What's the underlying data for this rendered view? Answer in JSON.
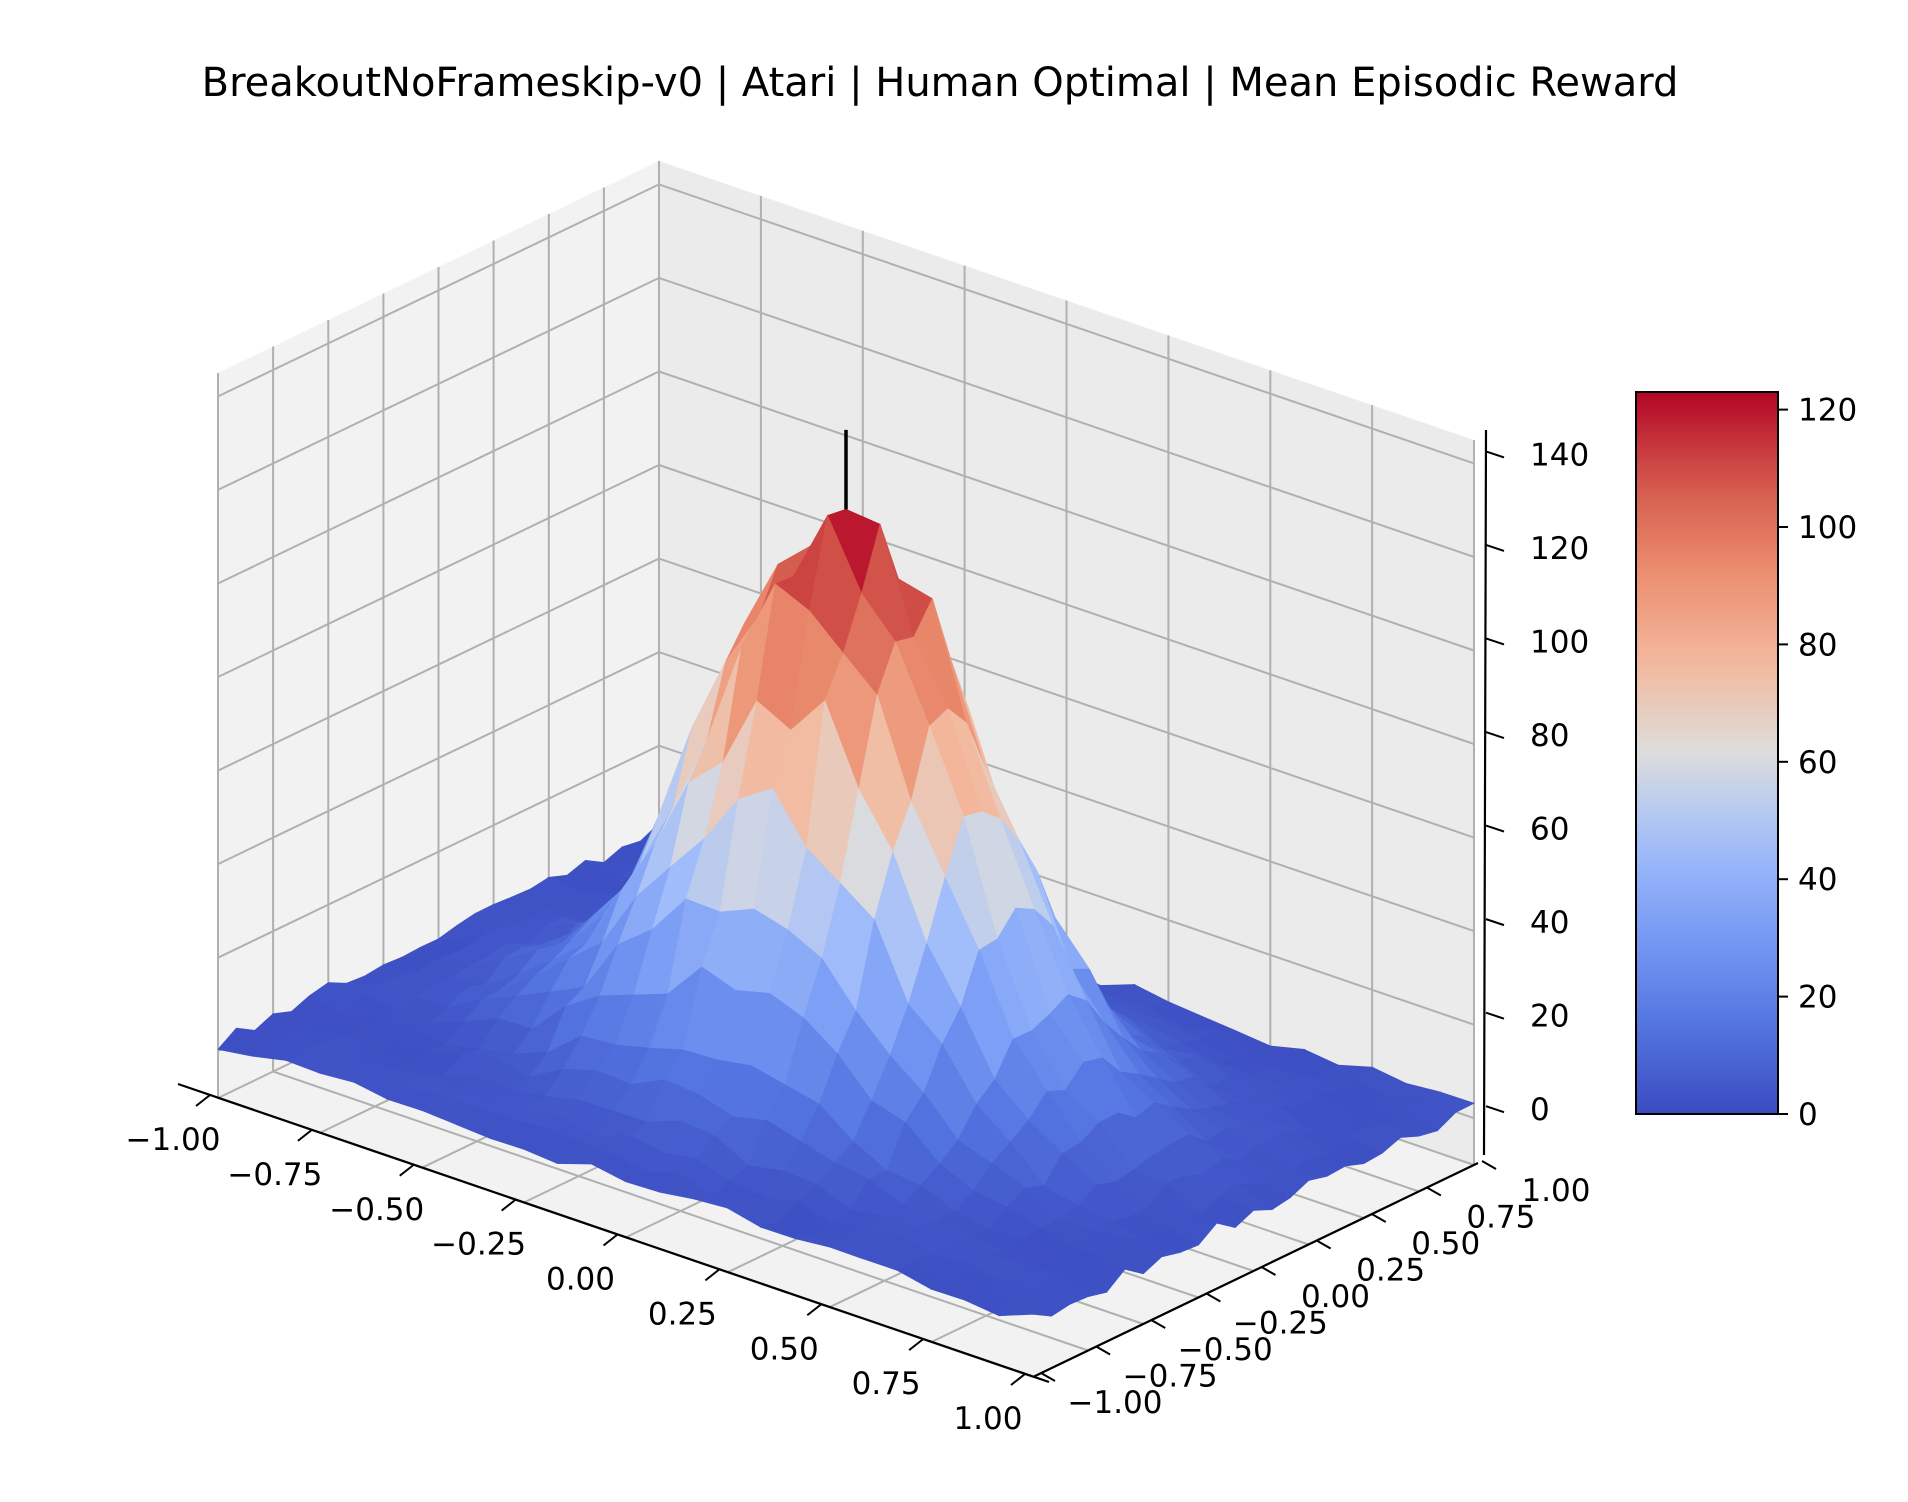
{
  "chart_data": {
    "type": "surface3d",
    "title": "BreakoutNoFrameskip-v0 | Atari | Human Optimal | Mean Episodic Reward",
    "xlabel": "",
    "ylabel": "",
    "zlabel": "",
    "colormap": "coolwarm",
    "xlim": [
      -1.0,
      1.0
    ],
    "ylim": [
      -1.0,
      1.0
    ],
    "zlim": [
      -10,
      145
    ],
    "x_ticks": [
      "−1.00",
      "−0.75",
      "−0.50",
      "−0.25",
      "0.00",
      "0.25",
      "0.50",
      "0.75",
      "1.00"
    ],
    "y_ticks": [
      "−1.00",
      "−0.75",
      "−0.50",
      "−0.25",
      "0.00",
      "0.25",
      "0.50",
      "0.75",
      "1.00"
    ],
    "z_ticks": [
      "0",
      "20",
      "40",
      "60",
      "80",
      "100",
      "120",
      "140"
    ],
    "colorbar": {
      "range": [
        0,
        123
      ],
      "ticks": [
        "0",
        "20",
        "40",
        "60",
        "80",
        "100",
        "120"
      ]
    },
    "surface": {
      "grid_size": 25,
      "peak": {
        "x": 0.0,
        "y": 0.0,
        "z": 123
      },
      "secondary_peak": {
        "x": 0.1,
        "y": 0.05,
        "z": 100
      },
      "spread": 0.3,
      "background_level": 2
    },
    "marker": {
      "x": 0.0,
      "y": 0.0,
      "z_from": 123,
      "z_to": 140
    }
  }
}
